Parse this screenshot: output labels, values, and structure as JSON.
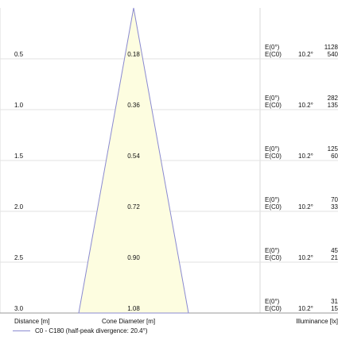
{
  "rows": [
    {
      "distance": "0.5",
      "diameter": "0.18",
      "e0_label": "E(0°)",
      "ec0_label": "E(C0)",
      "angle": "10.2°",
      "e0_value": "1128",
      "ec0_value": "540"
    },
    {
      "distance": "1.0",
      "diameter": "0.36",
      "e0_label": "E(0°)",
      "ec0_label": "E(C0)",
      "angle": "10.2°",
      "e0_value": "282",
      "ec0_value": "135"
    },
    {
      "distance": "1.5",
      "diameter": "0.54",
      "e0_label": "E(0°)",
      "ec0_label": "E(C0)",
      "angle": "10.2°",
      "e0_value": "125",
      "ec0_value": "60"
    },
    {
      "distance": "2.0",
      "diameter": "0.72",
      "e0_label": "E(0°)",
      "ec0_label": "E(C0)",
      "angle": "10.2°",
      "e0_value": "70",
      "ec0_value": "33"
    },
    {
      "distance": "2.5",
      "diameter": "0.90",
      "e0_label": "E(0°)",
      "ec0_label": "E(C0)",
      "angle": "10.2°",
      "e0_value": "45",
      "ec0_value": "21"
    },
    {
      "distance": "3.0",
      "diameter": "1.08",
      "e0_label": "E(0°)",
      "ec0_label": "E(C0)",
      "angle": "10.2°",
      "e0_value": "31",
      "ec0_value": "15"
    }
  ],
  "footer": {
    "distance_label": "Distance [m]",
    "diameter_label": "Cone Diameter [m]",
    "illuminance_label": "Illuminance [lx]"
  },
  "legend": {
    "text": "C0 - C180 (half-peak divergence: 20.4°)"
  },
  "colors": {
    "cone_fill": "#fdfde0",
    "cone_stroke": "#8a8ad0",
    "grid": "#d8d8d8"
  }
}
